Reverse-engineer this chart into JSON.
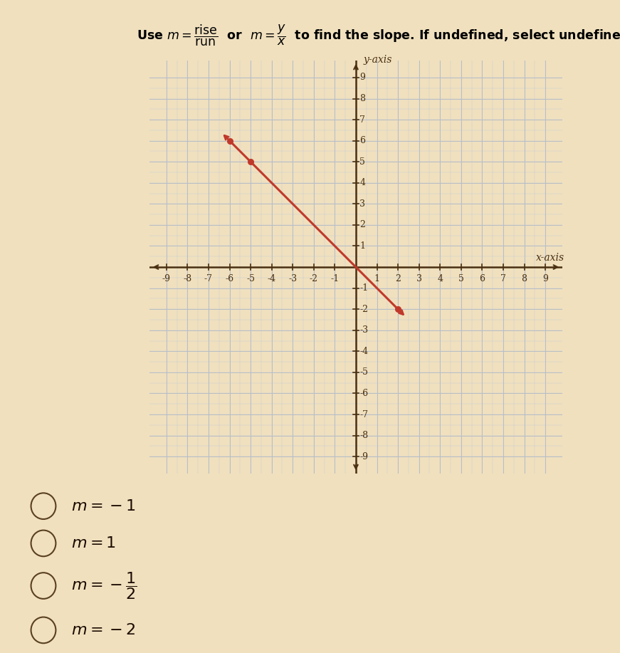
{
  "bg_color": "#f0e0be",
  "grid_color_minor": "#c8cdd4",
  "grid_color_major": "#b8bec6",
  "axis_color": "#4a3010",
  "line_color": "#c0392b",
  "line_point1": [
    -6,
    6
  ],
  "line_point2": [
    2,
    -2
  ],
  "dot_points": [
    [
      -6,
      6
    ],
    [
      -5,
      5
    ],
    [
      2,
      -2
    ]
  ],
  "axis_range": [
    -9,
    9
  ],
  "title_text_plain": "Use ",
  "xlabel": "x-axis",
  "ylabel": "y-axis",
  "choices": [
    "m = -1",
    "m = 1",
    "m = -\\dfrac{1}{2}",
    "m = -2"
  ],
  "choice_fontsize": 16,
  "tick_fontsize": 9,
  "axis_label_fontsize": 10
}
